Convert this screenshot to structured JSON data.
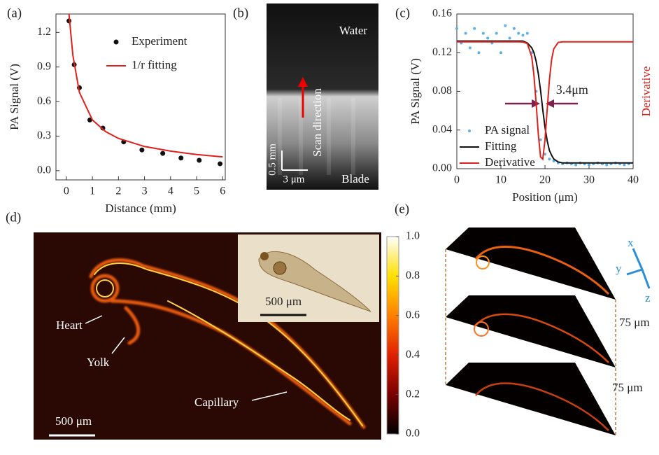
{
  "chart_data": [
    {
      "type": "xy",
      "panel": "(a)",
      "xlabel": "Distance (mm)",
      "ylabel": "PA Signal (V)",
      "xlim": [
        -0.4,
        6.1
      ],
      "ylim": [
        -0.08,
        1.36
      ],
      "xticks": [
        0,
        1,
        2,
        3,
        4,
        5,
        6
      ],
      "yticks": [
        {
          "value": 0,
          "label": "0.0"
        },
        0.3,
        0.6,
        0.9,
        1.2
      ],
      "legend": "upper right",
      "series": [
        {
          "name": "Experiment",
          "style": "markers",
          "color": "#111111",
          "x": [
            0.1,
            0.3,
            0.5,
            0.9,
            1.4,
            2.2,
            2.9,
            3.7,
            4.4,
            5.1,
            5.9
          ],
          "values": [
            1.3,
            0.92,
            0.72,
            0.44,
            0.37,
            0.25,
            0.18,
            0.15,
            0.11,
            0.09,
            0.06
          ]
        },
        {
          "name": "1/r fitting",
          "style": "line",
          "color": "#e0201b",
          "x": [
            0.1,
            0.25,
            0.5,
            1,
            1.5,
            2,
            3,
            4,
            5,
            6
          ],
          "values": [
            1.36,
            1.0,
            0.68,
            0.44,
            0.34,
            0.28,
            0.21,
            0.17,
            0.14,
            0.12
          ]
        }
      ]
    },
    {
      "type": "xy",
      "panel": "(c)",
      "xlabel": "Position (μm)",
      "ylabel": "PA Signal (V)",
      "y2label": "Derivative",
      "annotation": "3.4μm",
      "xlim": [
        0,
        40
      ],
      "ylim": [
        0,
        0.16
      ],
      "y2lim": [
        0,
        1
      ],
      "xticks": [
        0,
        10,
        20,
        30,
        40
      ],
      "yticks": [
        {
          "value": 0,
          "label": "0.00"
        },
        {
          "value": 0.04,
          "label": "0.04"
        },
        {
          "value": 0.08,
          "label": "0.08"
        },
        {
          "value": 0.12,
          "label": "0.12"
        },
        {
          "value": 0.16,
          "label": "0.16"
        }
      ],
      "legend": "lower left",
      "series": [
        {
          "name": "PA signal",
          "style": "markers",
          "color": "#5fb0e5",
          "x": [
            0,
            1,
            2,
            3,
            4,
            5,
            6,
            7,
            8,
            9,
            10,
            11,
            12,
            13,
            14,
            15,
            16,
            17,
            18,
            19,
            20,
            21,
            22,
            23,
            24,
            25,
            26,
            27,
            28,
            29,
            30,
            31,
            32,
            33,
            34,
            35,
            36,
            37,
            38,
            39
          ],
          "values": [
            0.145,
            0.13,
            0.14,
            0.125,
            0.145,
            0.12,
            0.14,
            0.135,
            0.13,
            0.14,
            0.12,
            0.148,
            0.135,
            0.145,
            0.14,
            0.138,
            0.14,
            0.12,
            0.08,
            0.03,
            0.015,
            0.01,
            0.008,
            0.006,
            0.005,
            0.006,
            0.005,
            0.004,
            0.006,
            0.005,
            0.004,
            0.005,
            0.006,
            0.005,
            0.004,
            0.005,
            0.006,
            0.005,
            0.004,
            0.005
          ]
        },
        {
          "name": "Fitting",
          "style": "line",
          "color": "#111111",
          "x": [
            0,
            5,
            10,
            14,
            15,
            16,
            17,
            17.5,
            18,
            18.5,
            19,
            19.5,
            20,
            20.5,
            21,
            21.5,
            22,
            23,
            24,
            25,
            30,
            35,
            40
          ],
          "values": [
            0.132,
            0.132,
            0.132,
            0.132,
            0.132,
            0.13,
            0.125,
            0.12,
            0.111,
            0.098,
            0.081,
            0.061,
            0.043,
            0.029,
            0.019,
            0.014,
            0.01,
            0.007,
            0.006,
            0.006,
            0.006,
            0.006,
            0.006
          ]
        },
        {
          "name": "Derivative",
          "style": "line",
          "color": "#e0201b",
          "axis": "y2",
          "x": [
            0,
            5,
            10,
            14,
            15,
            16,
            17,
            17.5,
            18,
            18.5,
            19,
            19.5,
            20,
            20.5,
            21,
            21.5,
            22,
            23,
            24,
            25,
            30,
            35,
            40
          ],
          "values": [
            0.82,
            0.82,
            0.82,
            0.82,
            0.819,
            0.809,
            0.723,
            0.603,
            0.422,
            0.22,
            0.076,
            0.062,
            0.184,
            0.381,
            0.571,
            0.704,
            0.775,
            0.816,
            0.82,
            0.82,
            0.82,
            0.82,
            0.82
          ]
        }
      ]
    },
    {
      "type": "colorbar",
      "ylim": [
        0,
        1
      ],
      "colors": [
        "#000000",
        "#7a0000",
        "#e02000",
        "#ff8000",
        "#ffe000",
        "#ffffff"
      ],
      "yticks": [
        {
          "value": 0,
          "label": "0.0"
        },
        0.2,
        0.4,
        0.6,
        0.8,
        {
          "value": 1,
          "label": "1.0"
        }
      ]
    }
  ],
  "figures": {
    "b": {
      "panel": "(b)",
      "water": "Water",
      "blade": "Blade",
      "scan": "Scan direction",
      "scale_v": "0.5 mm",
      "scale_h": "3 μm"
    },
    "d": {
      "panel": "(d)",
      "heart": "Heart",
      "yolk": "Yolk",
      "capillary": "Capillary",
      "scale": "500 μm",
      "inset_scale": "500 μm"
    },
    "e": {
      "panel": "(e)",
      "gap1": "75 μm",
      "gap2": "75 μm",
      "axis_x": "x",
      "axis_y": "y",
      "axis_z": "z"
    }
  }
}
